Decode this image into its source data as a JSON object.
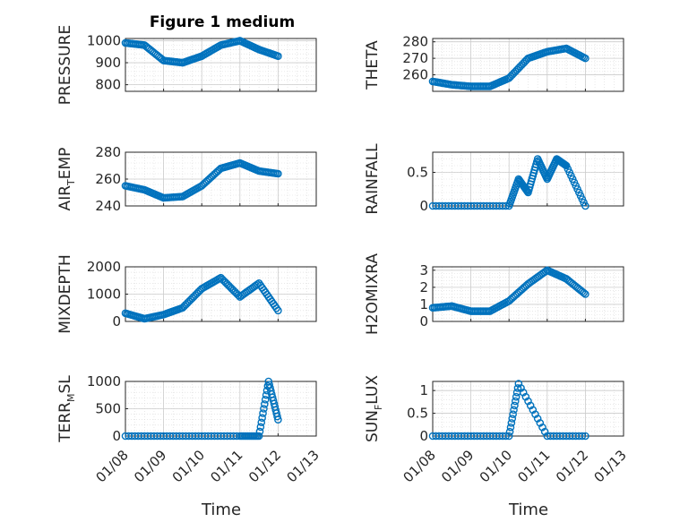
{
  "figure": {
    "title": "Figure 1 medium"
  },
  "xaxis": {
    "label": "Time",
    "ticks": [
      "01/08",
      "01/09",
      "01/10",
      "01/11",
      "01/12",
      "01/13"
    ]
  },
  "chart_data": [
    {
      "type": "scatter",
      "ylabel": "PRESSURE",
      "ylim": [
        770,
        1010
      ],
      "yticks": [
        "1000",
        "900",
        "800"
      ],
      "yticks_values": [
        1000,
        900,
        800
      ],
      "grid": true,
      "x": [
        "01/08 00:00",
        "01/08 12:00",
        "01/09 00:00",
        "01/09 12:00",
        "01/10 00:00",
        "01/10 12:00",
        "01/11 00:00",
        "01/11 12:00",
        "01/12 00:00"
      ],
      "y": [
        990,
        980,
        910,
        900,
        930,
        980,
        1000,
        960,
        930
      ]
    },
    {
      "type": "scatter",
      "ylabel": "THETA",
      "ylim": [
        250,
        282
      ],
      "yticks": [
        "280",
        "270",
        "260"
      ],
      "yticks_values": [
        280,
        270,
        260
      ],
      "grid": true,
      "x": [
        "01/08 00:00",
        "01/08 12:00",
        "01/09 00:00",
        "01/09 12:00",
        "01/10 00:00",
        "01/10 12:00",
        "01/11 00:00",
        "01/11 12:00",
        "01/12 00:00"
      ],
      "y": [
        256,
        254,
        253,
        253,
        258,
        270,
        274,
        276,
        270
      ]
    },
    {
      "type": "scatter",
      "ylabel": "AIR_TEMP",
      "ylim": [
        240,
        280
      ],
      "yticks": [
        "280",
        "260",
        "240"
      ],
      "yticks_values": [
        280,
        260,
        240
      ],
      "grid": true,
      "x": [
        "01/08 00:00",
        "01/08 12:00",
        "01/09 00:00",
        "01/09 12:00",
        "01/10 00:00",
        "01/10 12:00",
        "01/11 00:00",
        "01/11 12:00",
        "01/12 00:00"
      ],
      "y": [
        255,
        252,
        246,
        247,
        255,
        268,
        272,
        266,
        264
      ]
    },
    {
      "type": "scatter",
      "ylabel": "RAINFALL",
      "ylim": [
        0,
        0.8
      ],
      "yticks": [
        "0.5",
        "0"
      ],
      "yticks_values": [
        0.5,
        0
      ],
      "grid": true,
      "x": [
        "01/08 00:00",
        "01/09 00:00",
        "01/10 00:00",
        "01/10 06:00",
        "01/10 12:00",
        "01/10 18:00",
        "01/11 00:00",
        "01/11 06:00",
        "01/11 12:00",
        "01/12 00:00"
      ],
      "y": [
        0,
        0,
        0,
        0.4,
        0.2,
        0.7,
        0.4,
        0.7,
        0.6,
        0
      ]
    },
    {
      "type": "scatter",
      "ylabel": "MIXDEPTH",
      "ylim": [
        0,
        2000
      ],
      "yticks": [
        "2000",
        "1000",
        "0"
      ],
      "yticks_values": [
        2000,
        1000,
        0
      ],
      "grid": true,
      "x": [
        "01/08 00:00",
        "01/08 12:00",
        "01/09 00:00",
        "01/09 12:00",
        "01/10 00:00",
        "01/10 12:00",
        "01/11 00:00",
        "01/11 12:00",
        "01/12 00:00"
      ],
      "y": [
        300,
        100,
        250,
        500,
        1200,
        1600,
        900,
        1400,
        400
      ]
    },
    {
      "type": "scatter",
      "ylabel": "H2OMIXRA",
      "ylim": [
        0,
        3.2
      ],
      "yticks": [
        "3",
        "2",
        "1",
        "0"
      ],
      "yticks_values": [
        3,
        2,
        1,
        0
      ],
      "grid": true,
      "x": [
        "01/08 00:00",
        "01/08 12:00",
        "01/09 00:00",
        "01/09 12:00",
        "01/10 00:00",
        "01/10 12:00",
        "01/11 00:00",
        "01/11 12:00",
        "01/12 00:00"
      ],
      "y": [
        0.8,
        0.9,
        0.6,
        0.6,
        1.2,
        2.2,
        3.0,
        2.5,
        1.6
      ]
    },
    {
      "type": "scatter",
      "ylabel": "TERR_MSL",
      "ylim": [
        0,
        1000
      ],
      "yticks": [
        "1000",
        "500",
        "0"
      ],
      "yticks_values": [
        1000,
        500,
        0
      ],
      "grid": true,
      "x": [
        "01/08 00:00",
        "01/09 00:00",
        "01/10 00:00",
        "01/11 00:00",
        "01/11 12:00",
        "01/11 18:00",
        "01/12 00:00"
      ],
      "y": [
        0,
        0,
        0,
        0,
        0,
        1000,
        300
      ]
    },
    {
      "type": "scatter",
      "ylabel": "SUN_FLUX",
      "ylim": [
        0,
        1.2
      ],
      "yticks": [
        "1",
        "0.5",
        "0"
      ],
      "yticks_values": [
        1,
        0.5,
        0
      ],
      "grid": true,
      "x": [
        "01/08 00:00",
        "01/09 00:00",
        "01/10 00:00",
        "01/10 06:00",
        "01/11 00:00",
        "01/12 00:00"
      ],
      "y": [
        0,
        0,
        0,
        1.15,
        0,
        0
      ]
    }
  ],
  "colors": {
    "marker": "#0072BD",
    "axis": "#262626",
    "grid": "#d9d9d9"
  }
}
